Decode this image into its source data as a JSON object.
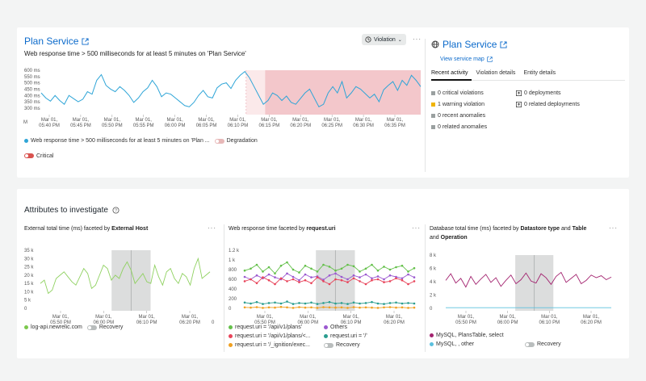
{
  "violation": {
    "service_title": "Plan Service",
    "subtitle": "Web response time > 500 milliseconds for at least 5 minutes on 'Plan Service'",
    "dropdown_label": "Violation",
    "chart_y_ticks": [
      "600 ms",
      "550 ms",
      "500 ms",
      "450 ms",
      "400 ms",
      "350 ms",
      "300 ms"
    ],
    "chart_x_ticks": [
      [
        "Mar 01,",
        "05:40 PM"
      ],
      [
        "Mar 01,",
        "05:45 PM"
      ],
      [
        "Mar 01,",
        "05:50 PM"
      ],
      [
        "Mar 01,",
        "05:55 PM"
      ],
      [
        "Mar 01,",
        "06:00 PM"
      ],
      [
        "Mar 01,",
        "06:05 PM"
      ],
      [
        "Mar 01,",
        "06:10 PM"
      ],
      [
        "Mar 01,",
        "06:15 PM"
      ],
      [
        "Mar 01,",
        "06:20 PM"
      ],
      [
        "Mar 01,",
        "06:25 PM"
      ],
      [
        "Mar 01,",
        "06:30 PM"
      ],
      [
        "Mar 01,",
        "06:35 PM"
      ]
    ],
    "x_tick_edge": "M",
    "legend_series": "Web response time > 500 milliseconds for at least 5 minutes on 'Plan ...",
    "legend_degradation": "Degradation",
    "legend_critical": "Critical"
  },
  "entity": {
    "title": "Plan Service",
    "view_map": "View service map",
    "tabs": [
      "Recent activity",
      "Violation details",
      "Entity details"
    ],
    "activity_left": [
      {
        "text": "0 critical violations",
        "color": "#9aa0a0"
      },
      {
        "text": "1 warning violation",
        "color": "#f0b400"
      },
      {
        "text": "0 recent anomalies",
        "color": "#9aa0a0"
      },
      {
        "text": "0 related anomalies",
        "color": "#9aa0a0"
      }
    ],
    "activity_right": [
      "0 deployments",
      "0 related deployments"
    ]
  },
  "attributes": {
    "title": "Attributes to investigate",
    "charts": [
      {
        "title_prefix": "External total time (ms) faceted by ",
        "title_bold": "External Host",
        "title_suffix": "",
        "y_ticks": [
          "35 k",
          "30 k",
          "25 k",
          "20 k",
          "15 k",
          "10 k",
          "5 k",
          "0"
        ],
        "x_ticks": [
          [
            "Mar 01,",
            "05:50 PM"
          ],
          [
            "Mar 01,",
            "06:00 PM"
          ],
          [
            "Mar 01,",
            "06:10 PM"
          ],
          [
            "Mar 01,",
            "06:20 PM"
          ]
        ],
        "x_tick_edge": "0",
        "legend": [
          {
            "text": "log-api.newrelic.com",
            "color": "#7cc84d",
            "kind": "dot"
          },
          {
            "text": "Recovery",
            "kind": "toggle"
          }
        ]
      },
      {
        "title_prefix": "Web response time faceted by ",
        "title_bold": "request.uri",
        "title_suffix": "",
        "y_ticks": [
          "1.2 k",
          "1 k",
          "800",
          "600",
          "400",
          "200",
          "0"
        ],
        "x_ticks": [
          [
            "Mar 01,",
            "05:50 PM"
          ],
          [
            "Mar 01,",
            "06:00 PM"
          ],
          [
            "Mar 01,",
            "06:10 PM"
          ],
          [
            "Mar 01,",
            "06:20 PM"
          ]
        ],
        "x_tick_edge": "",
        "legend": [
          {
            "text": "request.uri = '/api/v1/plans'",
            "color": "#64c04a",
            "kind": "dot"
          },
          {
            "text": "Others",
            "color": "#9b59d0",
            "kind": "dot"
          },
          {
            "text": "request.uri = '/api/v1/plans/<...",
            "color": "#e8445a",
            "kind": "dot"
          },
          {
            "text": "request.uri = '/'",
            "color": "#2a9d8f",
            "kind": "dot"
          },
          {
            "text": "request.uri = '/_ignition/exec...",
            "color": "#f0a020",
            "kind": "dot"
          },
          {
            "text": "Recovery",
            "kind": "toggle"
          }
        ]
      },
      {
        "title_prefix": "Database total time (ms) faceted by ",
        "title_bold": "Datastore type",
        "title_mid": " and ",
        "title_bold2": "Table",
        "title_mid2": " and ",
        "title_bold3": "Operation",
        "y_ticks": [
          "8 k",
          "6 k",
          "4 k",
          "2 k",
          "0"
        ],
        "x_ticks": [
          [
            "Mar 01,",
            "05:50 PM"
          ],
          [
            "Mar 01,",
            "06:00 PM"
          ],
          [
            "Mar 01,",
            "06:10 PM"
          ],
          [
            "Mar 01,",
            "06:20 PM"
          ]
        ],
        "x_tick_edge": "",
        "legend": [
          {
            "text": "MySQL, PlansTable, select",
            "color": "#a3236f",
            "kind": "dot"
          },
          {
            "text": "MySQL, , other",
            "color": "#5bc0de",
            "kind": "dot"
          },
          {
            "text": "Recovery",
            "kind": "toggle"
          }
        ]
      }
    ]
  },
  "chart_data": [
    {
      "type": "line",
      "ylim": [
        280,
        600
      ],
      "series": [
        {
          "values": [
            420,
            380,
            355,
            400,
            360,
            330,
            400,
            375,
            350,
            370,
            430,
            410,
            520,
            565,
            480,
            450,
            430,
            470,
            440,
            400,
            345,
            380,
            430,
            460,
            520,
            470,
            390,
            420,
            410,
            380,
            350,
            320,
            310,
            345,
            400,
            440,
            390,
            380,
            460,
            490,
            500,
            455,
            520,
            560,
            590,
            540,
            470,
            400,
            330,
            360,
            420,
            400,
            360,
            395,
            345,
            330,
            375,
            420,
            450,
            380,
            310,
            330,
            420,
            470,
            420,
            510,
            380,
            420,
            470,
            450,
            415,
            380,
            410,
            350,
            445,
            480,
            510,
            440,
            520,
            480,
            560,
            520,
            470
          ]
        }
      ],
      "degradation_band_start_x": 0.54,
      "critical_band_start_x": 0.59,
      "threshold": 500
    },
    {
      "type": "line",
      "ylim": [
        0,
        35000
      ],
      "series": [
        {
          "values": [
            15000,
            17000,
            9000,
            11000,
            18000,
            20000,
            22000,
            19000,
            16000,
            14000,
            19000,
            24000,
            21000,
            12000,
            14000,
            20000,
            26000,
            24000,
            17000,
            20000,
            18000,
            24000,
            28000,
            23000,
            15000,
            18000,
            21000,
            16000,
            15000,
            26000,
            19000,
            14000,
            22000,
            24000,
            18000,
            15000,
            21000,
            19000,
            14000,
            24000,
            30000,
            18000,
            20000,
            22000
          ]
        }
      ]
    },
    {
      "type": "line",
      "ylim": [
        0,
        1200
      ],
      "series": [
        {
          "values": [
            780,
            820,
            900,
            760,
            850,
            720,
            880,
            950,
            800,
            740,
            880,
            820,
            760,
            900,
            860,
            780,
            820,
            900,
            870,
            760,
            820,
            900,
            780,
            860,
            800,
            850,
            880,
            760,
            830
          ]
        },
        {
          "values": [
            650,
            600,
            680,
            620,
            700,
            640,
            600,
            720,
            650,
            580,
            700,
            640,
            660,
            590,
            680,
            720,
            650,
            600,
            680,
            640,
            700,
            620,
            660,
            600,
            680,
            650,
            620,
            700,
            640
          ]
        },
        {
          "values": [
            560,
            600,
            520,
            640,
            580,
            500,
            620,
            560,
            600,
            540,
            580,
            520,
            640,
            560,
            500,
            600,
            580,
            540,
            620,
            560,
            500,
            580,
            600,
            540,
            560,
            620,
            580,
            500,
            560
          ]
        },
        {
          "values": [
            120,
            100,
            130,
            90,
            110,
            120,
            100,
            140,
            90,
            110,
            100,
            120,
            90,
            110,
            130,
            100,
            110,
            90,
            120,
            100,
            110,
            130,
            100,
            90,
            110,
            120,
            100,
            110,
            100
          ]
        },
        {
          "values": [
            20,
            15,
            25,
            10,
            20,
            15,
            30,
            20,
            10,
            25,
            15,
            20,
            10,
            25,
            20,
            15,
            20,
            10,
            25,
            15,
            20,
            15,
            10,
            20,
            25,
            15,
            20,
            10,
            15
          ]
        }
      ]
    },
    {
      "type": "line",
      "ylim": [
        0,
        8000
      ],
      "series": [
        {
          "values": [
            4200,
            5200,
            3800,
            4500,
            3200,
            4800,
            3600,
            4400,
            5100,
            3900,
            4600,
            3300,
            4200,
            5000,
            3700,
            4300,
            5300,
            4100,
            3800,
            5200,
            4600,
            3600,
            4800,
            5400,
            3900,
            4500,
            5100,
            3700,
            4200,
            5000,
            4600,
            4900,
            4300,
            4700
          ]
        },
        {
          "values": [
            100,
            100,
            100,
            100,
            100,
            100,
            100,
            100,
            100,
            100,
            100,
            100,
            100,
            100,
            100,
            100,
            100,
            100,
            100,
            100,
            100,
            100,
            100,
            100,
            100,
            100,
            100,
            100,
            100,
            100,
            100,
            100,
            100,
            100
          ]
        }
      ]
    }
  ]
}
